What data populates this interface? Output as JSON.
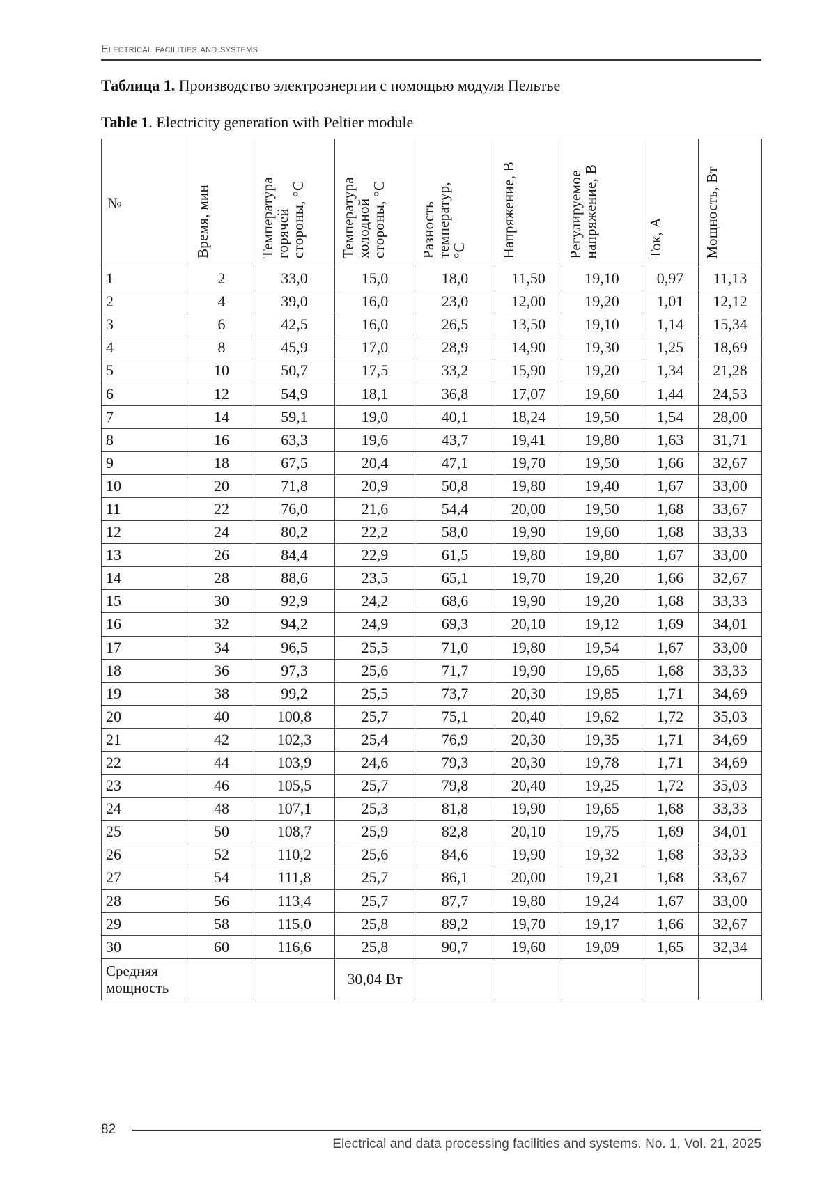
{
  "running_head": "Electrical facilities and systems",
  "caption_ru": {
    "label": "Таблица 1.",
    "text": " Производство электроэнергии с помощью модуля Пельтье"
  },
  "caption_en": {
    "label": "Table 1",
    "text": ". Electricity generation with Peltier module"
  },
  "table": {
    "headers": [
      {
        "lines": [
          "№"
        ],
        "rotated": false
      },
      {
        "lines": [
          "Время, мин"
        ],
        "rotated": true
      },
      {
        "lines": [
          "Температура",
          "горячей",
          "стороны, °С"
        ],
        "rotated": true
      },
      {
        "lines": [
          "Температура",
          "холодной",
          "стороны, °С"
        ],
        "rotated": true
      },
      {
        "lines": [
          "Разность",
          "температур,",
          "°С"
        ],
        "rotated": true
      },
      {
        "lines": [
          "Напряжение, В"
        ],
        "rotated": true
      },
      {
        "lines": [
          "Регулируемое",
          "напряжение, В"
        ],
        "rotated": true
      },
      {
        "lines": [
          "Ток, А"
        ],
        "rotated": true
      },
      {
        "lines": [
          "Мощность, Вт"
        ],
        "rotated": true
      }
    ],
    "rows": [
      [
        "1",
        "2",
        "33,0",
        "15,0",
        "18,0",
        "11,50",
        "19,10",
        "0,97",
        "11,13"
      ],
      [
        "2",
        "4",
        "39,0",
        "16,0",
        "23,0",
        "12,00",
        "19,20",
        "1,01",
        "12,12"
      ],
      [
        "3",
        "6",
        "42,5",
        "16,0",
        "26,5",
        "13,50",
        "19,10",
        "1,14",
        "15,34"
      ],
      [
        "4",
        "8",
        "45,9",
        "17,0",
        "28,9",
        "14,90",
        "19,30",
        "1,25",
        "18,69"
      ],
      [
        "5",
        "10",
        "50,7",
        "17,5",
        "33,2",
        "15,90",
        "19,20",
        "1,34",
        "21,28"
      ],
      [
        "6",
        "12",
        "54,9",
        "18,1",
        "36,8",
        "17,07",
        "19,60",
        "1,44",
        "24,53"
      ],
      [
        "7",
        "14",
        "59,1",
        "19,0",
        "40,1",
        "18,24",
        "19,50",
        "1,54",
        "28,00"
      ],
      [
        "8",
        "16",
        "63,3",
        "19,6",
        "43,7",
        "19,41",
        "19,80",
        "1,63",
        "31,71"
      ],
      [
        "9",
        "18",
        "67,5",
        "20,4",
        "47,1",
        "19,70",
        "19,50",
        "1,66",
        "32,67"
      ],
      [
        "10",
        "20",
        "71,8",
        "20,9",
        "50,8",
        "19,80",
        "19,40",
        "1,67",
        "33,00"
      ],
      [
        "11",
        "22",
        "76,0",
        "21,6",
        "54,4",
        "20,00",
        "19,50",
        "1,68",
        "33,67"
      ],
      [
        "12",
        "24",
        "80,2",
        "22,2",
        "58,0",
        "19,90",
        "19,60",
        "1,68",
        "33,33"
      ],
      [
        "13",
        "26",
        "84,4",
        "22,9",
        "61,5",
        "19,80",
        "19,80",
        "1,67",
        "33,00"
      ],
      [
        "14",
        "28",
        "88,6",
        "23,5",
        "65,1",
        "19,70",
        "19,20",
        "1,66",
        "32,67"
      ],
      [
        "15",
        "30",
        "92,9",
        "24,2",
        "68,6",
        "19,90",
        "19,20",
        "1,68",
        "33,33"
      ],
      [
        "16",
        "32",
        "94,2",
        "24,9",
        "69,3",
        "20,10",
        "19,12",
        "1,69",
        "34,01"
      ],
      [
        "17",
        "34",
        "96,5",
        "25,5",
        "71,0",
        "19,80",
        "19,54",
        "1,67",
        "33,00"
      ],
      [
        "18",
        "36",
        "97,3",
        "25,6",
        "71,7",
        "19,90",
        "19,65",
        "1,68",
        "33,33"
      ],
      [
        "19",
        "38",
        "99,2",
        "25,5",
        "73,7",
        "20,30",
        "19,85",
        "1,71",
        "34,69"
      ],
      [
        "20",
        "40",
        "100,8",
        "25,7",
        "75,1",
        "20,40",
        "19,62",
        "1,72",
        "35,03"
      ],
      [
        "21",
        "42",
        "102,3",
        "25,4",
        "76,9",
        "20,30",
        "19,35",
        "1,71",
        "34,69"
      ],
      [
        "22",
        "44",
        "103,9",
        "24,6",
        "79,3",
        "20,30",
        "19,78",
        "1,71",
        "34,69"
      ],
      [
        "23",
        "46",
        "105,5",
        "25,7",
        "79,8",
        "20,40",
        "19,25",
        "1,72",
        "35,03"
      ],
      [
        "24",
        "48",
        "107,1",
        "25,3",
        "81,8",
        "19,90",
        "19,65",
        "1,68",
        "33,33"
      ],
      [
        "25",
        "50",
        "108,7",
        "25,9",
        "82,8",
        "20,10",
        "19,75",
        "1,69",
        "34,01"
      ],
      [
        "26",
        "52",
        "110,2",
        "25,6",
        "84,6",
        "19,90",
        "19,32",
        "1,68",
        "33,33"
      ],
      [
        "27",
        "54",
        "111,8",
        "25,7",
        "86,1",
        "20,00",
        "19,21",
        "1,68",
        "33,67"
      ],
      [
        "28",
        "56",
        "113,4",
        "25,7",
        "87,7",
        "19,80",
        "19,24",
        "1,67",
        "33,00"
      ],
      [
        "29",
        "58",
        "115,0",
        "25,8",
        "89,2",
        "19,70",
        "19,17",
        "1,66",
        "32,67"
      ],
      [
        "30",
        "60",
        "116,6",
        "25,8",
        "90,7",
        "19,60",
        "19,09",
        "1,65",
        "32,34"
      ]
    ],
    "average_row": {
      "label_lines": [
        "Средняя",
        "мощность"
      ],
      "value": "30,04 Вт"
    }
  },
  "footer": {
    "page_number": "82",
    "journal": "Electrical and data processing facilities and systems. No. 1, Vol. 21, 2025"
  }
}
